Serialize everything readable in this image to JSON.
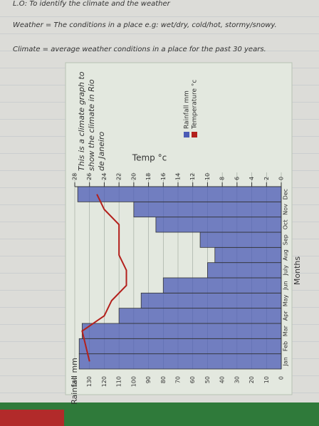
{
  "header": {
    "lo": "L.O: To identify the climate and the weather",
    "weather": "Weather = The conditions in a place e.g: wet/dry, cold/hot, stormy/snowy.",
    "climate": "Climate = average weather conditions in a place for the past 30 years."
  },
  "chart_data": {
    "type": "bar_line",
    "title": "This is a climate graph to show the climate in Rio de Janeiro",
    "xlabel": "Months",
    "ylabel": "Rainfall mm",
    "y2label": "Temp °c",
    "categories": [
      "Jan",
      "Feb",
      "Mar",
      "Apr",
      "May",
      "Jun",
      "July",
      "Aug",
      "Sep",
      "Oct",
      "Nov",
      "Dec"
    ],
    "series": [
      {
        "name": "Rainfall mm",
        "color": "#4b5bb5",
        "values": [
          137,
          137,
          135,
          110,
          95,
          80,
          50,
          45,
          55,
          85,
          100,
          138
        ]
      },
      {
        "name": "Temperature °c",
        "color": "#b3201c",
        "axis": "y2",
        "values": [
          26,
          26.5,
          27,
          24,
          23,
          21,
          21,
          22,
          22,
          22,
          24,
          25
        ]
      }
    ],
    "ylim": [
      0,
      140
    ],
    "yticks": [
      0,
      10,
      20,
      30,
      40,
      50,
      60,
      70,
      80,
      90,
      100,
      110,
      120,
      130,
      140
    ],
    "y2lim": [
      0,
      28
    ],
    "y2ticks": [
      0,
      2,
      4,
      6,
      8,
      10,
      12,
      14,
      16,
      18,
      20,
      22,
      24,
      26,
      28
    ],
    "grid": true
  }
}
